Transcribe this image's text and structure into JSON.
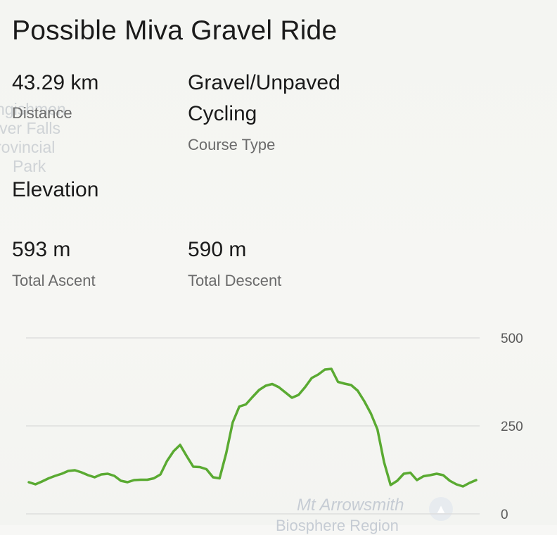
{
  "map": {
    "park_label_lines": [
      "ngishmen",
      "iver Falls",
      "rovincial",
      "Park"
    ],
    "mt_label": "Mt Arrowsmith",
    "region_label": "Biosphere Region",
    "poi_icon": "tree-icon"
  },
  "route": {
    "title": "Possible Miva Gravel Ride",
    "distance_value": "43.29 km",
    "distance_label": "Distance",
    "course_type_value": "Gravel/Unpaved Cycling",
    "course_type_label": "Course Type",
    "elevation_heading": "Elevation",
    "ascent_value": "593 m",
    "ascent_label": "Total Ascent",
    "descent_value": "590 m",
    "descent_label": "Total Descent"
  },
  "colors": {
    "profile_line": "#5aaa32",
    "grid": "#dedede"
  },
  "chart_data": {
    "type": "line",
    "title": "",
    "xlabel": "",
    "ylabel": "",
    "ylim": [
      0,
      500
    ],
    "yticks": [
      500,
      250,
      0
    ],
    "grid": true,
    "series": [
      {
        "values": [
          90,
          84,
          92,
          101,
          108,
          114,
          122,
          124,
          118,
          110,
          104,
          112,
          114,
          108,
          94,
          90,
          96,
          97,
          97,
          101,
          112,
          150,
          178,
          196,
          164,
          134,
          133,
          127,
          104,
          101,
          172,
          260,
          305,
          311,
          332,
          352,
          364,
          369,
          360,
          345,
          330,
          338,
          360,
          386,
          396,
          410,
          412,
          375,
          370,
          366,
          350,
          320,
          285,
          240,
          147,
          82,
          94,
          114,
          117,
          96,
          107,
          110,
          114,
          110,
          94,
          84,
          78,
          88,
          96
        ]
      }
    ]
  }
}
